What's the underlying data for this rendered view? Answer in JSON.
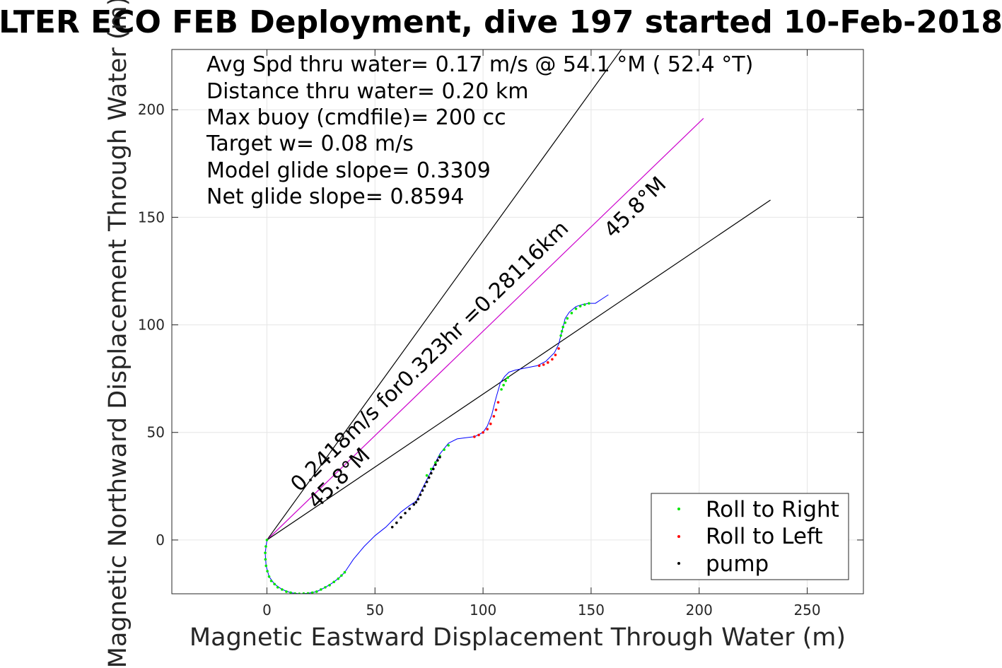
{
  "chart_data": {
    "type": "line",
    "title": "LTER ECO FEB Deployment, dive 197 started 10-Feb-2018",
    "xlabel": "Magnetic Eastward Displacement Through Water (m)",
    "ylabel": "Magnetic Northward Displacement Through Water (m)",
    "xlim": [
      -44,
      276
    ],
    "ylim": [
      -25,
      228
    ],
    "xticks": [
      0,
      50,
      100,
      150,
      200,
      250
    ],
    "yticks": [
      0,
      50,
      100,
      150,
      200
    ],
    "grid": true,
    "info_lines": [
      "Avg Spd thru water=  0.17 m/s @  54.1 °M ( 52.4 °T)",
      "Distance thru water=  0.20 km",
      "Max buoy (cmdfile)= 200 cc",
      "Target w= 0.08 m/s",
      "Model glide slope= 0.3309",
      "Net glide slope= 0.8594"
    ],
    "annotations": [
      {
        "text": "0.2418m/s for0.323hr =0.28116km",
        "x": 15,
        "y": 22,
        "angle": 45.8
      },
      {
        "text": "45.8°M",
        "x": 23,
        "y": 14,
        "angle": 45.8
      },
      {
        "text": "45.8°M",
        "x": 160,
        "y": 140,
        "angle": 45.8
      }
    ],
    "reference_lines": [
      {
        "name": "upper bound",
        "color": "#000000",
        "x": [
          0,
          164
        ],
        "y": [
          0,
          228
        ]
      },
      {
        "name": "heading line",
        "color": "#cc00cc",
        "x": [
          0,
          202
        ],
        "y": [
          0,
          196
        ]
      },
      {
        "name": "lower bound",
        "color": "#000000",
        "x": [
          0,
          233
        ],
        "y": [
          0,
          158
        ]
      }
    ],
    "track": {
      "name": "track",
      "color": "#0000ff",
      "x": [
        0,
        -0.8,
        -0.4,
        1,
        3.5,
        7,
        11,
        15,
        19,
        23,
        27,
        31,
        34,
        36,
        40,
        45,
        50,
        55,
        58,
        62,
        66,
        69,
        71,
        74,
        77,
        80,
        84,
        88,
        92,
        96,
        100,
        102,
        104,
        106,
        108,
        110,
        112,
        115,
        120,
        125,
        129,
        133,
        135,
        136,
        137,
        138,
        140,
        143,
        146,
        149,
        152,
        155,
        158
      ],
      "y": [
        0,
        -6,
        -12,
        -17,
        -20.5,
        -23,
        -24.5,
        -25,
        -24.8,
        -24,
        -22,
        -19.5,
        -17,
        -15,
        -9,
        -3,
        2,
        6,
        9,
        13,
        16,
        18,
        22,
        28,
        34,
        40,
        45,
        47,
        47.5,
        48,
        50,
        53,
        58,
        66,
        73,
        76,
        78,
        79,
        80,
        81,
        83,
        87,
        91,
        95,
        99,
        103,
        106,
        108.5,
        109.5,
        110,
        110,
        112,
        114
      ]
    },
    "series": [
      {
        "name": "Roll to Right",
        "color": "#00e600",
        "x": [
          0,
          -0.5,
          -0.8,
          -0.7,
          -0.4,
          0.2,
          1,
          2,
          3.5,
          5,
          7,
          9,
          11,
          13,
          15,
          17,
          19,
          21,
          23,
          25,
          27,
          29,
          31,
          33,
          34.5,
          36,
          74,
          76,
          78,
          80,
          82,
          84,
          108.5,
          109.5,
          110.5,
          111.5,
          136,
          136.5,
          137,
          138,
          139,
          141,
          143,
          145,
          147,
          149
        ],
        "y": [
          0,
          -3,
          -6,
          -9,
          -12,
          -14.5,
          -17,
          -19,
          -20.5,
          -22,
          -23,
          -24,
          -24.5,
          -24.9,
          -25,
          -24.9,
          -24.8,
          -24.5,
          -24,
          -23,
          -22,
          -21,
          -19.5,
          -18,
          -16.5,
          -15,
          30,
          33,
          36,
          39,
          42,
          44,
          70,
          72,
          74,
          75.5,
          95,
          97,
          99,
          101,
          103,
          105.5,
          107.5,
          108.7,
          109.4,
          110
        ]
      },
      {
        "name": "Roll to Left",
        "color": "#ff0000",
        "x": [
          96,
          98,
          100,
          102,
          103.5,
          105,
          106,
          107,
          126,
          128,
          130,
          132,
          133.5,
          135
        ],
        "y": [
          48,
          48.8,
          50,
          51.5,
          54,
          57.5,
          60.5,
          64,
          81,
          81.5,
          82.5,
          84,
          86,
          89
        ]
      },
      {
        "name": "pump",
        "color": "#000000",
        "x": [
          58,
          60,
          62,
          64,
          66,
          68,
          69,
          70,
          71,
          72,
          73,
          74,
          75,
          76,
          77,
          78,
          79,
          80
        ],
        "y": [
          6,
          8,
          10.5,
          12.5,
          14.5,
          16.5,
          17.5,
          19,
          21,
          23,
          25,
          27,
          29,
          31,
          33,
          35,
          37,
          38.5
        ]
      }
    ],
    "legend": {
      "position": "bottom-right",
      "entries": [
        "Roll to Right",
        "Roll to Left",
        "pump"
      ]
    }
  }
}
